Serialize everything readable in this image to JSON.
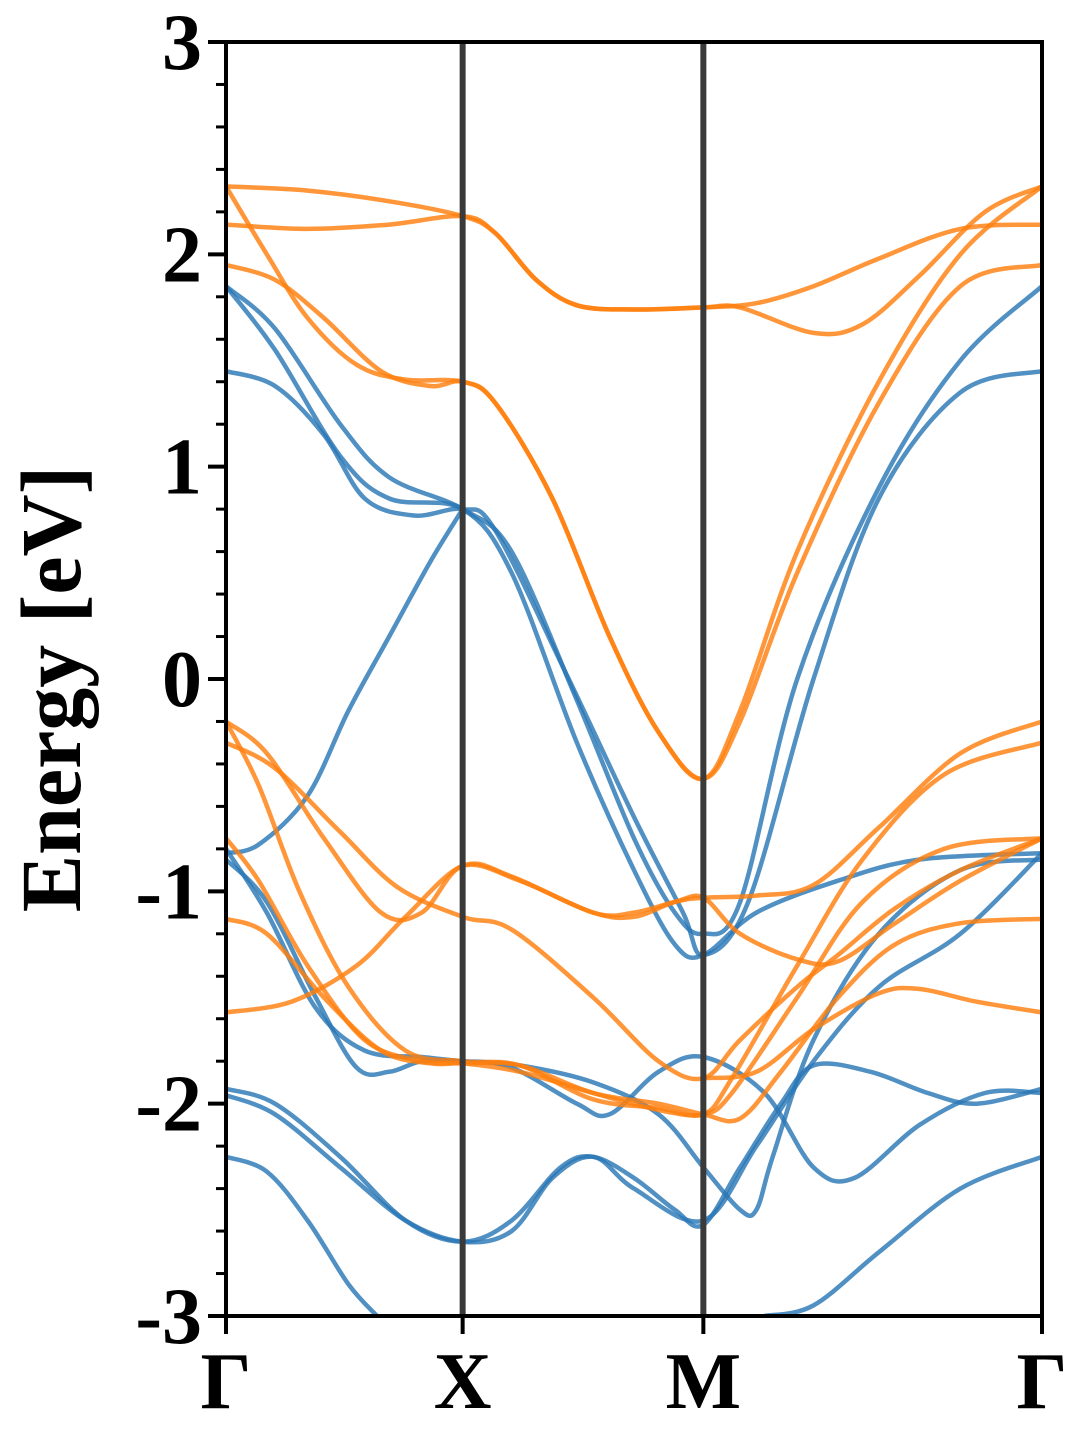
{
  "chart_data": {
    "type": "line",
    "title": "",
    "xlabel": "",
    "ylabel": "Energy [eV]",
    "ylim": [
      -3,
      3
    ],
    "yticks": [
      -3,
      -2,
      -1,
      0,
      1,
      2,
      3
    ],
    "ytick_labels": [
      "-3",
      "-2",
      "-1",
      "0",
      "1",
      "2",
      "3"
    ],
    "xlim": [
      0,
      1
    ],
    "kpoints": [
      {
        "label": "Γ",
        "x": 0.0
      },
      {
        "label": "X",
        "x": 0.29
      },
      {
        "label": "M",
        "x": 0.585
      },
      {
        "label": "Γ",
        "x": 1.0
      }
    ],
    "colors": {
      "blue": "#2b78b6",
      "orange": "#ff7f0e",
      "vline": "#3a3a3a",
      "axis": "#000000"
    },
    "series": [
      {
        "color": "blue",
        "points": [
          [
            0,
            1.85
          ],
          [
            0.06,
            1.55
          ],
          [
            0.14,
            1.05
          ],
          [
            0.2,
            0.85
          ],
          [
            0.29,
            0.8
          ],
          [
            0.35,
            0.5
          ],
          [
            0.43,
            -0.3
          ],
          [
            0.5,
            -0.9
          ],
          [
            0.55,
            -1.25
          ],
          [
            0.585,
            -1.3
          ],
          [
            0.65,
            -1.1
          ],
          [
            0.75,
            -0.95
          ],
          [
            0.85,
            -0.85
          ],
          [
            1,
            -0.82
          ]
        ]
      },
      {
        "color": "blue",
        "points": [
          [
            0,
            1.85
          ],
          [
            0.06,
            1.65
          ],
          [
            0.14,
            1.2
          ],
          [
            0.2,
            0.95
          ],
          [
            0.29,
            0.8
          ],
          [
            0.35,
            0.6
          ],
          [
            0.43,
            -0.1
          ],
          [
            0.5,
            -0.75
          ],
          [
            0.55,
            -1.1
          ],
          [
            0.585,
            -1.2
          ],
          [
            0.63,
            -1.05
          ],
          [
            0.7,
            0.0
          ],
          [
            0.8,
            0.9
          ],
          [
            0.9,
            1.5
          ],
          [
            1,
            1.85
          ]
        ]
      },
      {
        "color": "blue",
        "points": [
          [
            0,
            1.45
          ],
          [
            0.06,
            1.38
          ],
          [
            0.12,
            1.15
          ],
          [
            0.17,
            0.85
          ],
          [
            0.23,
            0.77
          ],
          [
            0.29,
            0.8
          ],
          [
            0.33,
            0.7
          ],
          [
            0.42,
            0.0
          ],
          [
            0.5,
            -0.65
          ],
          [
            0.56,
            -1.1
          ],
          [
            0.585,
            -1.3
          ],
          [
            0.64,
            -1.05
          ],
          [
            0.72,
            0.0
          ],
          [
            0.8,
            0.85
          ],
          [
            0.9,
            1.35
          ],
          [
            1,
            1.45
          ]
        ]
      },
      {
        "color": "blue",
        "points": [
          [
            0,
            -0.82
          ],
          [
            0.04,
            -0.78
          ],
          [
            0.1,
            -0.55
          ],
          [
            0.15,
            -0.15
          ],
          [
            0.2,
            0.2
          ],
          [
            0.25,
            0.55
          ],
          [
            0.29,
            0.8
          ]
        ]
      },
      {
        "color": "blue",
        "points": [
          [
            0,
            -0.85
          ],
          [
            0.05,
            -1.05
          ],
          [
            0.11,
            -1.5
          ],
          [
            0.16,
            -1.83
          ],
          [
            0.2,
            -1.85
          ],
          [
            0.24,
            -1.8
          ],
          [
            0.29,
            -1.8
          ],
          [
            0.35,
            -1.83
          ],
          [
            0.43,
            -2.0
          ],
          [
            0.47,
            -2.05
          ],
          [
            0.53,
            -1.85
          ],
          [
            0.585,
            -1.78
          ],
          [
            0.66,
            -1.95
          ],
          [
            0.72,
            -2.3
          ],
          [
            0.77,
            -2.35
          ],
          [
            0.85,
            -2.1
          ],
          [
            0.93,
            -1.95
          ],
          [
            1,
            -1.95
          ]
        ]
      },
      {
        "color": "blue",
        "points": [
          [
            0,
            -0.8
          ],
          [
            0.05,
            -1.1
          ],
          [
            0.11,
            -1.55
          ],
          [
            0.17,
            -1.75
          ],
          [
            0.24,
            -1.78
          ],
          [
            0.29,
            -1.8
          ],
          [
            0.36,
            -1.82
          ],
          [
            0.45,
            -1.9
          ],
          [
            0.53,
            -2.05
          ],
          [
            0.585,
            -2.3
          ],
          [
            0.63,
            -2.5
          ],
          [
            0.65,
            -2.5
          ],
          [
            0.67,
            -2.25
          ],
          [
            0.72,
            -1.7
          ],
          [
            0.8,
            -1.2
          ],
          [
            0.9,
            -0.9
          ],
          [
            1,
            -0.85
          ]
        ]
      },
      {
        "color": "blue",
        "points": [
          [
            0,
            -1.93
          ],
          [
            0.06,
            -2.0
          ],
          [
            0.14,
            -2.25
          ],
          [
            0.22,
            -2.55
          ],
          [
            0.29,
            -2.65
          ],
          [
            0.35,
            -2.55
          ],
          [
            0.41,
            -2.3
          ],
          [
            0.45,
            -2.25
          ],
          [
            0.5,
            -2.35
          ],
          [
            0.55,
            -2.5
          ],
          [
            0.585,
            -2.57
          ],
          [
            0.63,
            -2.3
          ],
          [
            0.68,
            -2.0
          ],
          [
            0.72,
            -1.82
          ],
          [
            0.79,
            -1.85
          ],
          [
            0.86,
            -1.95
          ],
          [
            0.92,
            -2.0
          ],
          [
            1,
            -1.93
          ]
        ]
      },
      {
        "color": "blue",
        "points": [
          [
            0,
            -1.96
          ],
          [
            0.06,
            -2.05
          ],
          [
            0.14,
            -2.3
          ],
          [
            0.22,
            -2.55
          ],
          [
            0.29,
            -2.65
          ],
          [
            0.35,
            -2.6
          ],
          [
            0.4,
            -2.35
          ],
          [
            0.45,
            -2.25
          ],
          [
            0.5,
            -2.4
          ],
          [
            0.585,
            -2.55
          ],
          [
            0.65,
            -2.2
          ],
          [
            0.72,
            -1.8
          ],
          [
            0.8,
            -1.45
          ],
          [
            0.9,
            -1.2
          ],
          [
            1,
            -0.82
          ]
        ]
      },
      {
        "color": "blue",
        "points": [
          [
            0,
            -2.25
          ],
          [
            0.05,
            -2.32
          ],
          [
            0.1,
            -2.55
          ],
          [
            0.15,
            -2.85
          ],
          [
            0.185,
            -3.0
          ]
        ]
      },
      {
        "color": "blue",
        "points": [
          [
            0.66,
            -3.0
          ],
          [
            0.72,
            -2.95
          ],
          [
            0.8,
            -2.7
          ],
          [
            0.9,
            -2.4
          ],
          [
            1,
            -2.25
          ]
        ]
      },
      {
        "color": "orange",
        "points": [
          [
            0,
            2.32
          ],
          [
            0.1,
            2.3
          ],
          [
            0.2,
            2.25
          ],
          [
            0.29,
            2.18
          ],
          [
            0.33,
            2.1
          ],
          [
            0.38,
            1.88
          ],
          [
            0.43,
            1.76
          ],
          [
            0.5,
            1.74
          ],
          [
            0.585,
            1.75
          ],
          [
            0.63,
            1.75
          ],
          [
            0.72,
            1.63
          ],
          [
            0.78,
            1.67
          ],
          [
            0.85,
            1.9
          ],
          [
            0.93,
            2.2
          ],
          [
            1,
            2.32
          ]
        ]
      },
      {
        "color": "orange",
        "points": [
          [
            0,
            2.14
          ],
          [
            0.1,
            2.12
          ],
          [
            0.2,
            2.14
          ],
          [
            0.29,
            2.18
          ],
          [
            0.33,
            2.1
          ],
          [
            0.38,
            1.88
          ],
          [
            0.43,
            1.76
          ],
          [
            0.5,
            1.74
          ],
          [
            0.585,
            1.75
          ],
          [
            0.65,
            1.77
          ],
          [
            0.72,
            1.85
          ],
          [
            0.8,
            1.98
          ],
          [
            0.9,
            2.12
          ],
          [
            1,
            2.14
          ]
        ]
      },
      {
        "color": "orange",
        "points": [
          [
            0,
            1.95
          ],
          [
            0.06,
            1.88
          ],
          [
            0.12,
            1.7
          ],
          [
            0.19,
            1.45
          ],
          [
            0.25,
            1.38
          ],
          [
            0.29,
            1.4
          ],
          [
            0.33,
            1.3
          ],
          [
            0.4,
            0.85
          ],
          [
            0.47,
            0.2
          ],
          [
            0.53,
            -0.25
          ],
          [
            0.585,
            -0.47
          ],
          [
            0.63,
            -0.2
          ],
          [
            0.7,
            0.5
          ],
          [
            0.8,
            1.3
          ],
          [
            0.9,
            1.85
          ],
          [
            1,
            1.95
          ]
        ]
      },
      {
        "color": "orange",
        "points": [
          [
            0,
            2.32
          ],
          [
            0.05,
            2.0
          ],
          [
            0.1,
            1.7
          ],
          [
            0.16,
            1.48
          ],
          [
            0.22,
            1.41
          ],
          [
            0.29,
            1.4
          ],
          [
            0.33,
            1.3
          ],
          [
            0.4,
            0.85
          ],
          [
            0.47,
            0.2
          ],
          [
            0.53,
            -0.25
          ],
          [
            0.585,
            -0.47
          ],
          [
            0.63,
            -0.15
          ],
          [
            0.7,
            0.6
          ],
          [
            0.8,
            1.4
          ],
          [
            0.9,
            2.0
          ],
          [
            1,
            2.32
          ]
        ]
      },
      {
        "color": "orange",
        "points": [
          [
            0,
            -0.2
          ],
          [
            0.05,
            -0.35
          ],
          [
            0.12,
            -0.75
          ],
          [
            0.19,
            -1.1
          ],
          [
            0.24,
            -1.1
          ],
          [
            0.29,
            -0.88
          ],
          [
            0.36,
            -0.95
          ],
          [
            0.45,
            -1.1
          ],
          [
            0.5,
            -1.12
          ],
          [
            0.55,
            -1.05
          ],
          [
            0.585,
            -1.03
          ],
          [
            0.65,
            -1.02
          ],
          [
            0.72,
            -0.97
          ],
          [
            0.8,
            -0.7
          ],
          [
            0.9,
            -0.35
          ],
          [
            1,
            -0.2
          ]
        ]
      },
      {
        "color": "orange",
        "points": [
          [
            0,
            -0.3
          ],
          [
            0.06,
            -0.42
          ],
          [
            0.14,
            -0.72
          ],
          [
            0.21,
            -0.98
          ],
          [
            0.29,
            -1.12
          ],
          [
            0.35,
            -1.18
          ],
          [
            0.45,
            -1.5
          ],
          [
            0.53,
            -1.8
          ],
          [
            0.585,
            -1.88
          ],
          [
            0.63,
            -1.7
          ],
          [
            0.7,
            -1.45
          ],
          [
            0.75,
            -1.3
          ],
          [
            0.82,
            -1.08
          ],
          [
            0.9,
            -0.9
          ],
          [
            1,
            -0.75
          ]
        ]
      },
      {
        "color": "orange",
        "points": [
          [
            0,
            -0.2
          ],
          [
            0.04,
            -0.5
          ],
          [
            0.09,
            -1.0
          ],
          [
            0.15,
            -1.45
          ],
          [
            0.22,
            -1.75
          ],
          [
            0.29,
            -1.8
          ],
          [
            0.36,
            -1.82
          ],
          [
            0.45,
            -1.98
          ],
          [
            0.53,
            -2.02
          ],
          [
            0.585,
            -2.05
          ],
          [
            0.62,
            -1.88
          ],
          [
            0.7,
            -1.35
          ],
          [
            0.78,
            -0.85
          ],
          [
            0.88,
            -0.45
          ],
          [
            1,
            -0.3
          ]
        ]
      },
      {
        "color": "orange",
        "points": [
          [
            0,
            -0.75
          ],
          [
            0.04,
            -0.95
          ],
          [
            0.1,
            -1.35
          ],
          [
            0.17,
            -1.7
          ],
          [
            0.24,
            -1.8
          ],
          [
            0.29,
            -1.81
          ],
          [
            0.36,
            -1.85
          ],
          [
            0.45,
            -1.95
          ],
          [
            0.53,
            -2.03
          ],
          [
            0.585,
            -2.05
          ],
          [
            0.62,
            -1.95
          ],
          [
            0.7,
            -1.5
          ],
          [
            0.78,
            -1.05
          ],
          [
            0.88,
            -0.8
          ],
          [
            1,
            -0.75
          ]
        ]
      },
      {
        "color": "orange",
        "points": [
          [
            0,
            -1.13
          ],
          [
            0.05,
            -1.2
          ],
          [
            0.12,
            -1.5
          ],
          [
            0.19,
            -1.75
          ],
          [
            0.25,
            -1.81
          ],
          [
            0.29,
            -1.81
          ],
          [
            0.36,
            -1.82
          ],
          [
            0.45,
            -1.95
          ],
          [
            0.53,
            -2.0
          ],
          [
            0.585,
            -2.05
          ],
          [
            0.63,
            -2.07
          ],
          [
            0.68,
            -1.85
          ],
          [
            0.75,
            -1.5
          ],
          [
            0.82,
            -1.25
          ],
          [
            0.9,
            -1.15
          ],
          [
            1,
            -1.13
          ]
        ]
      },
      {
        "color": "orange",
        "points": [
          [
            0,
            -1.57
          ],
          [
            0.08,
            -1.52
          ],
          [
            0.16,
            -1.35
          ],
          [
            0.22,
            -1.12
          ],
          [
            0.29,
            -0.88
          ],
          [
            0.35,
            -0.93
          ],
          [
            0.45,
            -1.1
          ],
          [
            0.5,
            -1.1
          ],
          [
            0.55,
            -1.05
          ],
          [
            0.585,
            -1.03
          ],
          [
            0.63,
            -1.2
          ],
          [
            0.7,
            -1.32
          ],
          [
            0.75,
            -1.33
          ],
          [
            0.82,
            -1.15
          ],
          [
            0.9,
            -0.95
          ],
          [
            1,
            -0.75
          ]
        ]
      },
      {
        "color": "orange",
        "points": [
          [
            0.585,
            -1.88
          ],
          [
            0.65,
            -1.85
          ],
          [
            0.72,
            -1.65
          ],
          [
            0.8,
            -1.48
          ],
          [
            0.85,
            -1.46
          ],
          [
            0.92,
            -1.52
          ],
          [
            1,
            -1.57
          ]
        ]
      }
    ]
  }
}
